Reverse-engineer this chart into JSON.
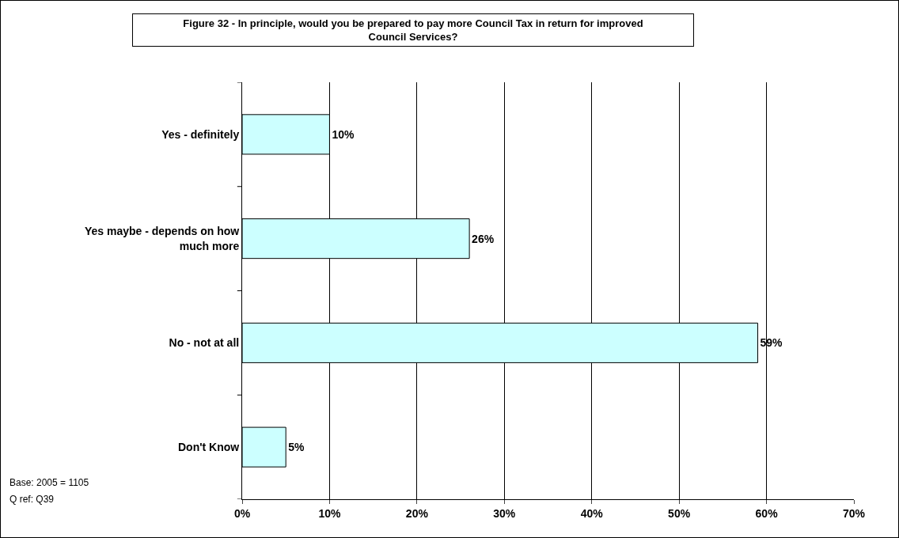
{
  "chart_data": {
    "type": "bar",
    "orientation": "horizontal",
    "title": "Figure 32 - In principle, would you be prepared to pay more Council Tax in return for improved Council Services?",
    "categories": [
      "Yes - definitely",
      "Yes maybe - depends on how much more",
      "No - not at all",
      "Don't Know"
    ],
    "values": [
      10,
      26,
      59,
      5
    ],
    "value_labels": [
      "10%",
      "26%",
      "59%",
      "5%"
    ],
    "color": "#ccffff",
    "xlim": [
      0,
      70
    ],
    "xticks": [
      {
        "value": 0,
        "label": "0%"
      },
      {
        "value": 10,
        "label": "10%"
      },
      {
        "value": 20,
        "label": "20%"
      },
      {
        "value": 30,
        "label": "30%"
      },
      {
        "value": 40,
        "label": "40%"
      },
      {
        "value": 50,
        "label": "50%"
      },
      {
        "value": 60,
        "label": "60%"
      },
      {
        "value": 70,
        "label": "70%"
      }
    ],
    "grid": "x",
    "annotations": [
      "Base: 2005 = 1105",
      "Q ref: Q39"
    ]
  }
}
